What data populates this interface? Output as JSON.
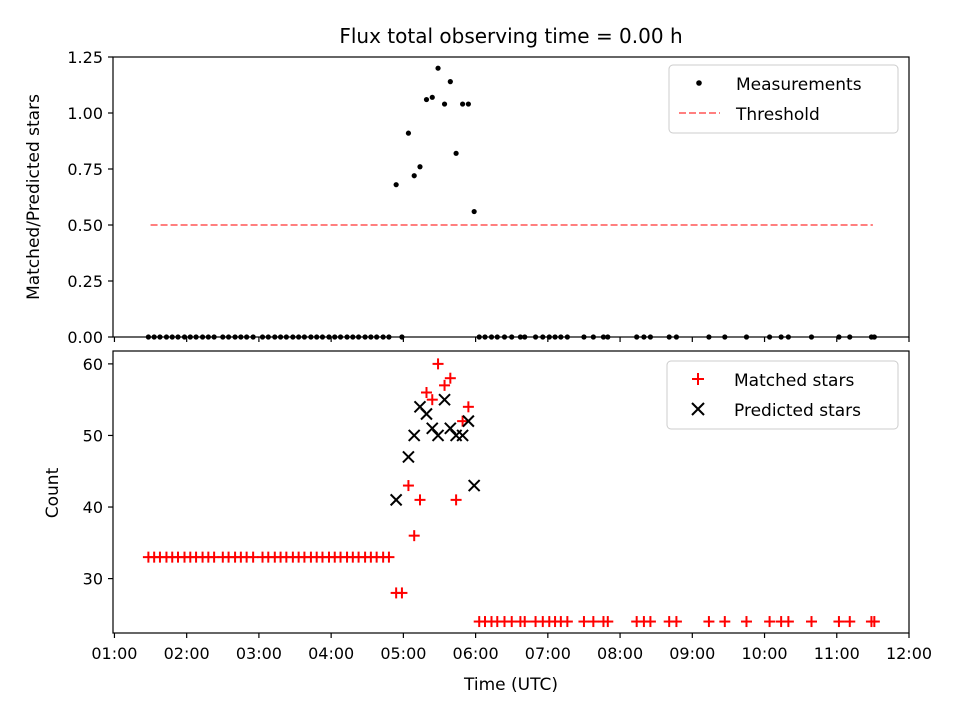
{
  "chart_data": [
    {
      "type": "scatter",
      "title": "Flux total observing time = 0.00 h",
      "ylabel": "Matched/Predicted stars",
      "xlabel": "",
      "xlim": [
        0.98,
        12.0
      ],
      "ylim": [
        0,
        1.25
      ],
      "x_ticks": [
        {
          "value": 1,
          "label": ""
        },
        {
          "value": 2,
          "label": ""
        },
        {
          "value": 3,
          "label": ""
        },
        {
          "value": 4,
          "label": ""
        },
        {
          "value": 5,
          "label": ""
        },
        {
          "value": 6,
          "label": ""
        },
        {
          "value": 7,
          "label": ""
        },
        {
          "value": 8,
          "label": ""
        },
        {
          "value": 9,
          "label": ""
        },
        {
          "value": 10,
          "label": ""
        },
        {
          "value": 11,
          "label": ""
        },
        {
          "value": 12,
          "label": ""
        }
      ],
      "y_ticks": [
        {
          "value": 0,
          "label": "0.00"
        },
        {
          "value": 0.25,
          "label": "0.25"
        },
        {
          "value": 0.5,
          "label": "0.50"
        },
        {
          "value": 0.75,
          "label": "0.75"
        },
        {
          "value": 1.0,
          "label": "1.00"
        },
        {
          "value": 1.25,
          "label": "1.25"
        }
      ],
      "legend_position": "top-right",
      "series": [
        {
          "name": "Measurements",
          "kind": "point",
          "color": "#000000",
          "points": [
            [
              1.47,
              0
            ],
            [
              1.55,
              0
            ],
            [
              1.63,
              0
            ],
            [
              1.72,
              0
            ],
            [
              1.8,
              0
            ],
            [
              1.88,
              0
            ],
            [
              1.97,
              0
            ],
            [
              2.05,
              0
            ],
            [
              2.13,
              0
            ],
            [
              2.22,
              0
            ],
            [
              2.3,
              0
            ],
            [
              2.38,
              0
            ],
            [
              2.5,
              0
            ],
            [
              2.58,
              0
            ],
            [
              2.67,
              0
            ],
            [
              2.75,
              0
            ],
            [
              2.83,
              0
            ],
            [
              2.92,
              0
            ],
            [
              3.05,
              0
            ],
            [
              3.13,
              0
            ],
            [
              3.22,
              0
            ],
            [
              3.3,
              0
            ],
            [
              3.38,
              0
            ],
            [
              3.47,
              0
            ],
            [
              3.55,
              0
            ],
            [
              3.63,
              0
            ],
            [
              3.72,
              0
            ],
            [
              3.8,
              0
            ],
            [
              3.88,
              0
            ],
            [
              3.97,
              0
            ],
            [
              4.05,
              0
            ],
            [
              4.13,
              0
            ],
            [
              4.22,
              0
            ],
            [
              4.3,
              0
            ],
            [
              4.38,
              0
            ],
            [
              4.47,
              0
            ],
            [
              4.55,
              0
            ],
            [
              4.63,
              0
            ],
            [
              4.72,
              0
            ],
            [
              4.8,
              0
            ],
            [
              4.98,
              0
            ],
            [
              4.9,
              0.68
            ],
            [
              5.07,
              0.91
            ],
            [
              5.15,
              0.72
            ],
            [
              5.23,
              0.76
            ],
            [
              5.32,
              1.06
            ],
            [
              5.4,
              1.07
            ],
            [
              5.48,
              1.2
            ],
            [
              5.57,
              1.04
            ],
            [
              5.65,
              1.14
            ],
            [
              5.73,
              0.82
            ],
            [
              5.82,
              1.04
            ],
            [
              5.9,
              1.04
            ],
            [
              5.98,
              0.56
            ],
            [
              6.05,
              0
            ],
            [
              6.13,
              0
            ],
            [
              6.22,
              0
            ],
            [
              6.3,
              0
            ],
            [
              6.4,
              0
            ],
            [
              6.5,
              0
            ],
            [
              6.62,
              0
            ],
            [
              6.68,
              0
            ],
            [
              6.83,
              0
            ],
            [
              6.93,
              0
            ],
            [
              7.02,
              0
            ],
            [
              7.1,
              0
            ],
            [
              7.18,
              0
            ],
            [
              7.27,
              0
            ],
            [
              7.5,
              0
            ],
            [
              7.63,
              0
            ],
            [
              7.77,
              0
            ],
            [
              7.83,
              0
            ],
            [
              8.23,
              0
            ],
            [
              8.33,
              0
            ],
            [
              8.42,
              0
            ],
            [
              8.68,
              0
            ],
            [
              8.78,
              0
            ],
            [
              9.23,
              0
            ],
            [
              9.45,
              0
            ],
            [
              9.75,
              0
            ],
            [
              10.07,
              0
            ],
            [
              10.23,
              0
            ],
            [
              10.33,
              0
            ],
            [
              10.65,
              0
            ],
            [
              11.03,
              0
            ],
            [
              11.18,
              0
            ],
            [
              11.48,
              0
            ],
            [
              11.52,
              0
            ]
          ]
        },
        {
          "name": "Threshold",
          "kind": "dashed-line",
          "color": "#ff7f7f",
          "points": [
            [
              1.5,
              0.5
            ],
            [
              11.5,
              0.5
            ]
          ]
        }
      ]
    },
    {
      "type": "scatter",
      "title": "",
      "ylabel": "Count",
      "xlabel": "Time (UTC)",
      "xlim": [
        0.98,
        12.0
      ],
      "ylim": [
        22.4,
        61.8
      ],
      "x_ticks": [
        {
          "value": 1,
          "label": "01:00"
        },
        {
          "value": 2,
          "label": "02:00"
        },
        {
          "value": 3,
          "label": "03:00"
        },
        {
          "value": 4,
          "label": "04:00"
        },
        {
          "value": 5,
          "label": "05:00"
        },
        {
          "value": 6,
          "label": "06:00"
        },
        {
          "value": 7,
          "label": "07:00"
        },
        {
          "value": 8,
          "label": "08:00"
        },
        {
          "value": 9,
          "label": "09:00"
        },
        {
          "value": 10,
          "label": "10:00"
        },
        {
          "value": 11,
          "label": "11:00"
        },
        {
          "value": 12,
          "label": "12:00"
        }
      ],
      "y_ticks": [
        {
          "value": 30,
          "label": "30"
        },
        {
          "value": 40,
          "label": "40"
        },
        {
          "value": 50,
          "label": "50"
        },
        {
          "value": 60,
          "label": "60"
        }
      ],
      "legend_position": "top-right",
      "series": [
        {
          "name": "Matched stars",
          "kind": "plus",
          "color": "#ff0000",
          "points": [
            [
              1.47,
              33
            ],
            [
              1.55,
              33
            ],
            [
              1.63,
              33
            ],
            [
              1.72,
              33
            ],
            [
              1.8,
              33
            ],
            [
              1.88,
              33
            ],
            [
              1.97,
              33
            ],
            [
              2.05,
              33
            ],
            [
              2.13,
              33
            ],
            [
              2.22,
              33
            ],
            [
              2.3,
              33
            ],
            [
              2.38,
              33
            ],
            [
              2.5,
              33
            ],
            [
              2.58,
              33
            ],
            [
              2.67,
              33
            ],
            [
              2.75,
              33
            ],
            [
              2.83,
              33
            ],
            [
              2.92,
              33
            ],
            [
              3.05,
              33
            ],
            [
              3.13,
              33
            ],
            [
              3.22,
              33
            ],
            [
              3.3,
              33
            ],
            [
              3.38,
              33
            ],
            [
              3.47,
              33
            ],
            [
              3.55,
              33
            ],
            [
              3.63,
              33
            ],
            [
              3.72,
              33
            ],
            [
              3.8,
              33
            ],
            [
              3.88,
              33
            ],
            [
              3.97,
              33
            ],
            [
              4.05,
              33
            ],
            [
              4.13,
              33
            ],
            [
              4.22,
              33
            ],
            [
              4.3,
              33
            ],
            [
              4.38,
              33
            ],
            [
              4.47,
              33
            ],
            [
              4.55,
              33
            ],
            [
              4.63,
              33
            ],
            [
              4.72,
              33
            ],
            [
              4.8,
              33
            ],
            [
              4.9,
              28
            ],
            [
              4.98,
              28
            ],
            [
              5.07,
              43
            ],
            [
              5.15,
              36
            ],
            [
              5.23,
              41
            ],
            [
              5.32,
              56
            ],
            [
              5.4,
              55
            ],
            [
              5.48,
              60
            ],
            [
              5.57,
              57
            ],
            [
              5.65,
              58
            ],
            [
              5.73,
              41
            ],
            [
              5.82,
              52
            ],
            [
              5.9,
              54
            ],
            [
              6.05,
              24
            ],
            [
              6.13,
              24
            ],
            [
              6.22,
              24
            ],
            [
              6.3,
              24
            ],
            [
              6.4,
              24
            ],
            [
              6.5,
              24
            ],
            [
              6.62,
              24
            ],
            [
              6.68,
              24
            ],
            [
              6.83,
              24
            ],
            [
              6.93,
              24
            ],
            [
              7.02,
              24
            ],
            [
              7.1,
              24
            ],
            [
              7.18,
              24
            ],
            [
              7.27,
              24
            ],
            [
              7.5,
              24
            ],
            [
              7.63,
              24
            ],
            [
              7.77,
              24
            ],
            [
              7.83,
              24
            ],
            [
              8.23,
              24
            ],
            [
              8.33,
              24
            ],
            [
              8.42,
              24
            ],
            [
              8.68,
              24
            ],
            [
              8.78,
              24
            ],
            [
              9.23,
              24
            ],
            [
              9.45,
              24
            ],
            [
              9.75,
              24
            ],
            [
              10.07,
              24
            ],
            [
              10.23,
              24
            ],
            [
              10.33,
              24
            ],
            [
              10.65,
              24
            ],
            [
              11.03,
              24
            ],
            [
              11.18,
              24
            ],
            [
              11.48,
              24
            ],
            [
              11.52,
              24
            ]
          ]
        },
        {
          "name": "Predicted stars",
          "kind": "x",
          "color": "#000000",
          "points": [
            [
              4.9,
              41
            ],
            [
              5.07,
              47
            ],
            [
              5.15,
              50
            ],
            [
              5.23,
              54
            ],
            [
              5.32,
              53
            ],
            [
              5.4,
              51
            ],
            [
              5.48,
              50
            ],
            [
              5.57,
              55
            ],
            [
              5.65,
              51
            ],
            [
              5.73,
              50
            ],
            [
              5.82,
              50
            ],
            [
              5.9,
              52
            ],
            [
              5.98,
              43
            ]
          ]
        }
      ]
    }
  ]
}
